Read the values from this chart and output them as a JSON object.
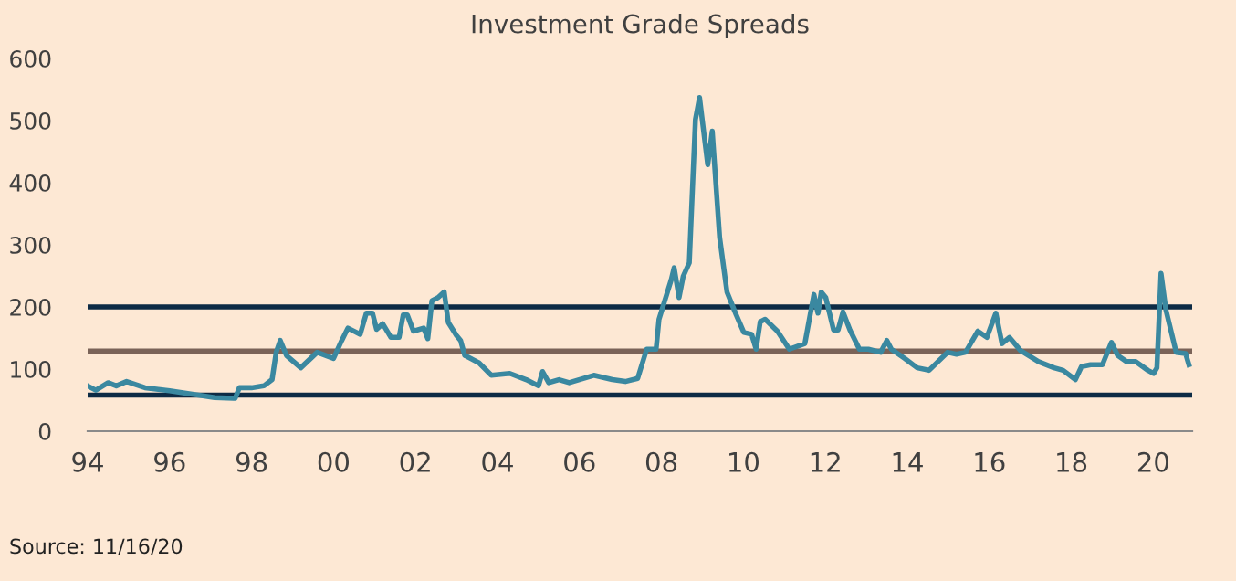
{
  "chart_data": {
    "type": "line",
    "title": "Investment Grade Spreads",
    "annotations": [
      "Source: 11/16/20"
    ],
    "x": [
      1994.0,
      1994.2,
      1994.5,
      1994.7,
      1994.95,
      1995.4,
      1996.0,
      1996.7,
      1997.1,
      1997.6,
      1997.7,
      1998.0,
      1998.3,
      1998.5,
      1998.6,
      1998.7,
      1998.85,
      1999.2,
      1999.6,
      2000.0,
      2000.2,
      2000.35,
      2000.65,
      2000.8,
      2000.95,
      2001.05,
      2001.2,
      2001.4,
      2001.6,
      2001.7,
      2001.8,
      2001.95,
      2002.2,
      2002.3,
      2002.4,
      2002.55,
      2002.7,
      2002.8,
      2003.0,
      2003.1,
      2003.2,
      2003.55,
      2003.85,
      2004.3,
      2004.7,
      2005.0,
      2005.1,
      2005.25,
      2005.5,
      2005.75,
      2006.35,
      2006.8,
      2007.12,
      2007.42,
      2007.64,
      2007.87,
      2007.94,
      2008.24,
      2008.31,
      2008.43,
      2008.53,
      2008.68,
      2008.83,
      2008.93,
      2009.13,
      2009.24,
      2009.42,
      2009.6,
      2009.82,
      2010.01,
      2010.2,
      2010.31,
      2010.41,
      2010.53,
      2010.83,
      2011.12,
      2011.5,
      2011.72,
      2011.82,
      2011.9,
      2012.01,
      2012.2,
      2012.31,
      2012.43,
      2012.6,
      2012.83,
      2013.05,
      2013.35,
      2013.5,
      2013.61,
      2013.94,
      2014.24,
      2014.53,
      2014.98,
      2015.2,
      2015.42,
      2015.72,
      2015.94,
      2016.16,
      2016.31,
      2016.49,
      2016.76,
      2017.2,
      2017.58,
      2017.8,
      2018.1,
      2018.25,
      2018.47,
      2018.76,
      2018.98,
      2019.13,
      2019.35,
      2019.57,
      2019.87,
      2020.01,
      2020.09,
      2020.19,
      2020.31,
      2020.56,
      2020.79,
      2020.87
    ],
    "series": [
      {
        "color": "#3a88a0",
        "values": [
          73,
          66,
          78,
          73,
          80,
          70,
          65,
          58,
          54,
          53,
          70,
          70,
          73,
          83,
          127,
          146,
          122,
          102,
          127,
          117,
          146,
          166,
          156,
          190,
          190,
          164,
          173,
          151,
          151,
          187,
          187,
          161,
          166,
          149,
          210,
          215,
          224,
          175,
          154,
          146,
          122,
          110,
          90,
          93,
          83,
          73,
          96,
          78,
          83,
          78,
          90,
          83,
          80,
          85,
          132,
          132,
          180,
          244,
          263,
          215,
          249,
          271,
          502,
          537,
          429,
          483,
          312,
          224,
          188,
          159,
          156,
          132,
          176,
          180,
          161,
          132,
          141,
          220,
          190,
          224,
          215,
          163,
          163,
          192,
          163,
          132,
          132,
          127,
          146,
          132,
          117,
          102,
          98,
          127,
          124,
          127,
          161,
          151,
          190,
          141,
          151,
          130,
          112,
          102,
          98,
          83,
          104,
          107,
          107,
          143,
          122,
          112,
          112,
          98,
          93,
          102,
          254,
          195,
          127,
          125,
          107
        ]
      }
    ],
    "xlim": [
      1994,
      2020.95
    ],
    "ylim": [
      0,
      600
    ],
    "xticks": [
      {
        "value": 1994,
        "label": "94"
      },
      {
        "value": 1996,
        "label": "96"
      },
      {
        "value": 1998,
        "label": "98"
      },
      {
        "value": 2000,
        "label": "00"
      },
      {
        "value": 2002,
        "label": "02"
      },
      {
        "value": 2004,
        "label": "04"
      },
      {
        "value": 2006,
        "label": "06"
      },
      {
        "value": 2008,
        "label": "08"
      },
      {
        "value": 2010,
        "label": "10"
      },
      {
        "value": 2012,
        "label": "12"
      },
      {
        "value": 2014,
        "label": "14"
      },
      {
        "value": 2016,
        "label": "16"
      },
      {
        "value": 2018,
        "label": "18"
      },
      {
        "value": 2020,
        "label": "20"
      }
    ],
    "yticks": [
      0,
      100,
      200,
      300,
      400,
      500,
      600
    ],
    "ref_lines": [
      {
        "axis": "y",
        "value": 200,
        "color": "#0d2b45"
      },
      {
        "axis": "y",
        "value": 129,
        "color": "#7a6358"
      },
      {
        "axis": "y",
        "value": 58,
        "color": "#0d2b45"
      }
    ],
    "grid": false,
    "legend": false
  }
}
